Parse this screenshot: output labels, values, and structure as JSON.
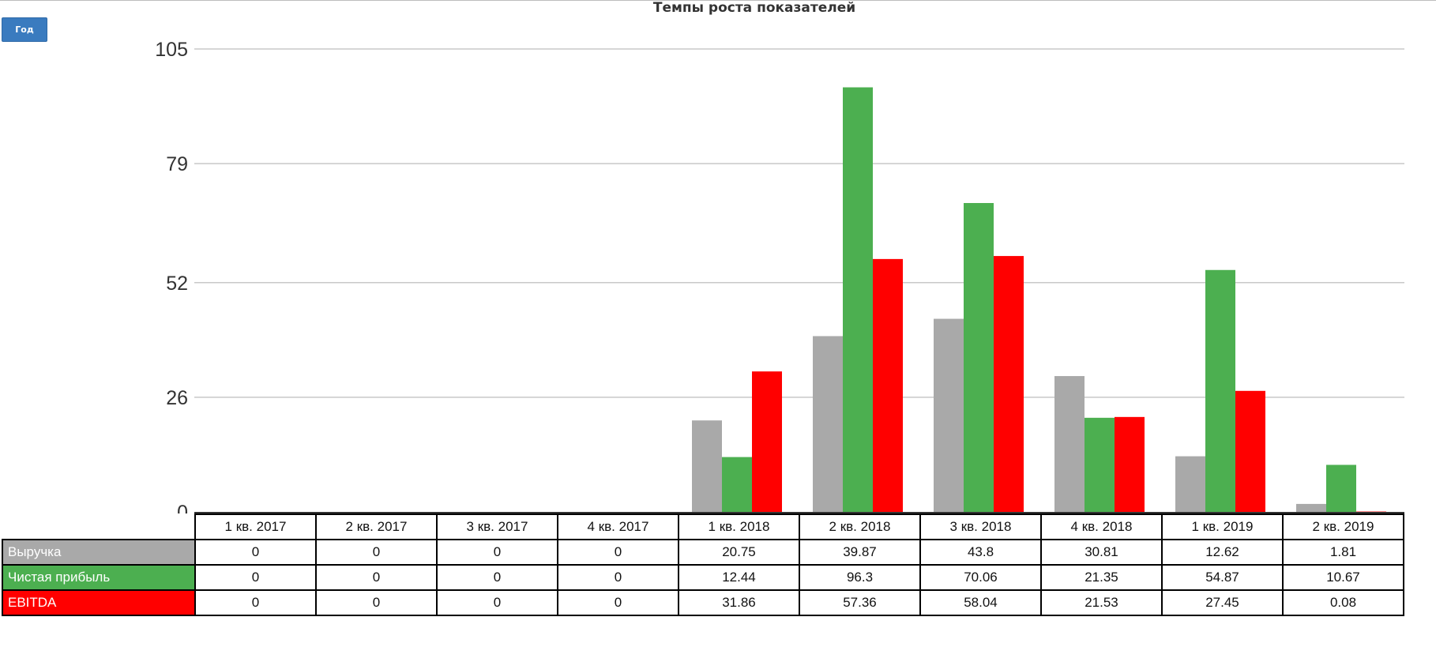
{
  "toolbar": {
    "period_button": "Год"
  },
  "chart_data": {
    "type": "bar",
    "title": "Темпы роста показателей",
    "categories": [
      "1 кв. 2017",
      "2 кв. 2017",
      "3 кв. 2017",
      "4 кв. 2017",
      "1 кв. 2018",
      "2 кв. 2018",
      "3 кв. 2018",
      "4 кв. 2018",
      "1 кв. 2019",
      "2 кв. 2019"
    ],
    "yticks": [
      0,
      26,
      52,
      79,
      105
    ],
    "ylim": [
      0,
      105
    ],
    "grid": true,
    "series": [
      {
        "name": "Выручка",
        "color": "#a9a9a9",
        "values": [
          0,
          0,
          0,
          0,
          20.75,
          39.87,
          43.8,
          30.81,
          12.62,
          1.81
        ]
      },
      {
        "name": "Чистая прибыль",
        "color": "#4caf50",
        "values": [
          0,
          0,
          0,
          0,
          12.44,
          96.3,
          70.06,
          21.35,
          54.87,
          10.67
        ]
      },
      {
        "name": "EBITDA",
        "color": "#ff0000",
        "values": [
          0,
          0,
          0,
          0,
          31.86,
          57.36,
          58.04,
          21.53,
          27.45,
          0.08
        ]
      }
    ]
  }
}
